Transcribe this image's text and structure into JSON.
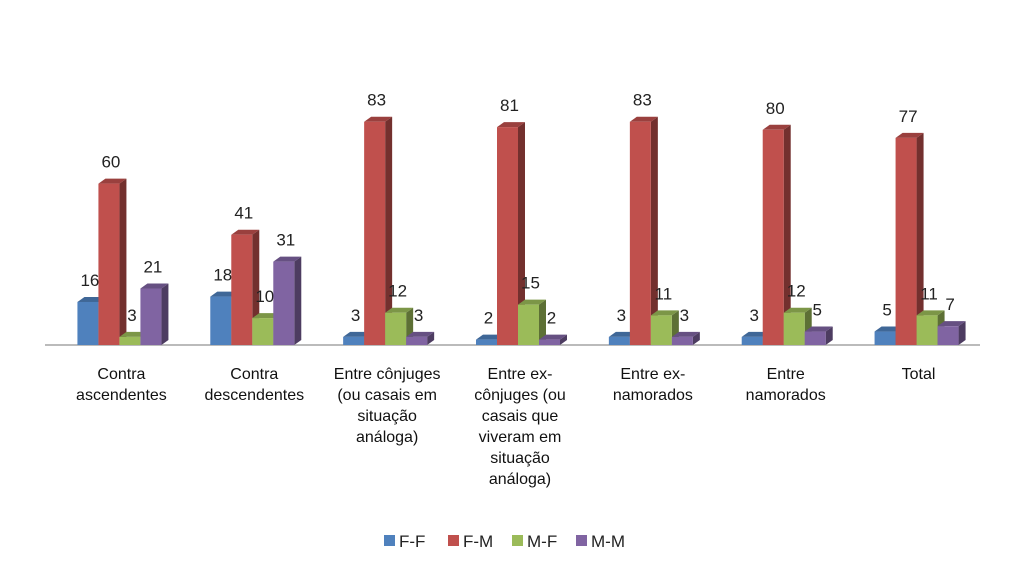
{
  "chart_data": {
    "type": "bar3d",
    "categories": [
      "Contra ascendentes",
      "Contra descendentes",
      "Entre cônjuges (ou casais em situação análoga)",
      "Entre ex-cônjuges (ou casais que viveram em situação análoga)",
      "Entre ex-namorados",
      "Entre namorados",
      "Total"
    ],
    "series": [
      {
        "name": "F-F",
        "color": "#4f81bd",
        "values": [
          16,
          18,
          3,
          2,
          3,
          3,
          5
        ]
      },
      {
        "name": "F-M",
        "color": "#c0504d",
        "values": [
          60,
          41,
          83,
          81,
          83,
          80,
          77
        ]
      },
      {
        "name": "M-F",
        "color": "#9bbb59",
        "values": [
          3,
          10,
          12,
          15,
          11,
          12,
          11
        ]
      },
      {
        "name": "M-M",
        "color": "#8064a2",
        "values": [
          21,
          31,
          3,
          2,
          3,
          5,
          7
        ]
      }
    ],
    "ylim": [
      0,
      100
    ],
    "legend": "bottom"
  }
}
